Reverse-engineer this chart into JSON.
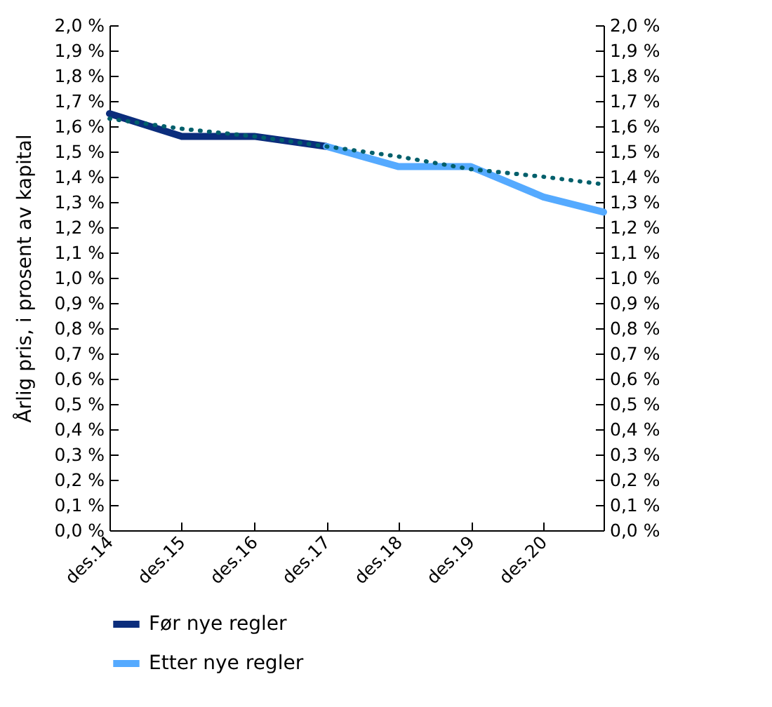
{
  "chart_data": {
    "type": "line",
    "ylabel": "Årlig pris, i prosent av kapital",
    "xlim": [
      "2014-12",
      "2021-10"
    ],
    "xticks": [
      {
        "value": "2014-12",
        "label": "des.14"
      },
      {
        "value": "2015-12",
        "label": "des.15"
      },
      {
        "value": "2016-12",
        "label": "des.16"
      },
      {
        "value": "2017-12",
        "label": "des.17"
      },
      {
        "value": "2018-12",
        "label": "des.18"
      },
      {
        "value": "2019-12",
        "label": "des.19"
      },
      {
        "value": "2020-12",
        "label": "des.20"
      }
    ],
    "ylim": [
      0,
      2
    ],
    "yticks": [
      {
        "value": 0,
        "label": "0,0 %"
      },
      {
        "value": 0.1,
        "label": "0,1 %"
      },
      {
        "value": 0.2,
        "label": "0,2 %"
      },
      {
        "value": 0.3,
        "label": "0,3 %"
      },
      {
        "value": 0.4,
        "label": "0,4 %"
      },
      {
        "value": 0.5,
        "label": "0,5 %"
      },
      {
        "value": 0.6,
        "label": "0,6 %"
      },
      {
        "value": 0.7,
        "label": "0,7 %"
      },
      {
        "value": 0.8,
        "label": "0,8 %"
      },
      {
        "value": 0.9,
        "label": "0,9 %"
      },
      {
        "value": 1,
        "label": "1,0 %"
      },
      {
        "value": 1.1,
        "label": "1,1 %"
      },
      {
        "value": 1.2,
        "label": "1,2 %"
      },
      {
        "value": 1.3,
        "label": "1,3 %"
      },
      {
        "value": 1.4,
        "label": "1,4 %"
      },
      {
        "value": 1.5,
        "label": "1,5 %"
      },
      {
        "value": 1.6,
        "label": "1,6 %"
      },
      {
        "value": 1.7,
        "label": "1,7 %"
      },
      {
        "value": 1.8,
        "label": "1,8 %"
      },
      {
        "value": 1.9,
        "label": "1,9 %"
      },
      {
        "value": 2,
        "label": "2,0 %"
      }
    ],
    "y2lim": [
      0,
      2
    ],
    "y2ticks": [
      {
        "value": 0,
        "label": "0,0 %"
      },
      {
        "value": 0.1,
        "label": "0,1 %"
      },
      {
        "value": 0.2,
        "label": "0,2 %"
      },
      {
        "value": 0.3,
        "label": "0,3 %"
      },
      {
        "value": 0.4,
        "label": "0,4 %"
      },
      {
        "value": 0.5,
        "label": "0,5 %"
      },
      {
        "value": 0.6,
        "label": "0,6 %"
      },
      {
        "value": 0.7,
        "label": "0,7 %"
      },
      {
        "value": 0.8,
        "label": "0,8 %"
      },
      {
        "value": 0.9,
        "label": "0,9 %"
      },
      {
        "value": 1,
        "label": "1,0 %"
      },
      {
        "value": 1.1,
        "label": "1,1 %"
      },
      {
        "value": 1.2,
        "label": "1,2 %"
      },
      {
        "value": 1.3,
        "label": "1,3 %"
      },
      {
        "value": 1.4,
        "label": "1,4 %"
      },
      {
        "value": 1.5,
        "label": "1,5 %"
      },
      {
        "value": 1.6,
        "label": "1,6 %"
      },
      {
        "value": 1.7,
        "label": "1,7 %"
      },
      {
        "value": 1.8,
        "label": "1,8 %"
      },
      {
        "value": 1.9,
        "label": "1,9 %"
      },
      {
        "value": 2,
        "label": "2,0 %"
      }
    ],
    "grid": false,
    "legend": "bottom",
    "marker": "none",
    "series": [
      {
        "name": "Før nye regler",
        "color": "#0b2d7c",
        "line_style": "solid",
        "x": [
          "2014-12",
          "2015-12",
          "2016-12",
          "2017-12"
        ],
        "values": [
          1.65,
          1.56,
          1.56,
          1.52
        ]
      },
      {
        "name": "Etter nye regler",
        "color": "#55aaff",
        "line_style": "solid",
        "x": [
          "2017-12",
          "2018-12",
          "2019-12",
          "2020-12",
          "2021-10"
        ],
        "values": [
          1.52,
          1.44,
          1.44,
          1.32,
          1.26
        ]
      },
      {
        "color": "#005f6b",
        "line_style": "dotted",
        "x": [
          "2014-12",
          "2015-12",
          "2016-12",
          "2017-12",
          "2018-12",
          "2019-12",
          "2020-12",
          "2021-10"
        ],
        "values": [
          1.63,
          1.59,
          1.56,
          1.52,
          1.48,
          1.43,
          1.4,
          1.37
        ]
      }
    ]
  }
}
